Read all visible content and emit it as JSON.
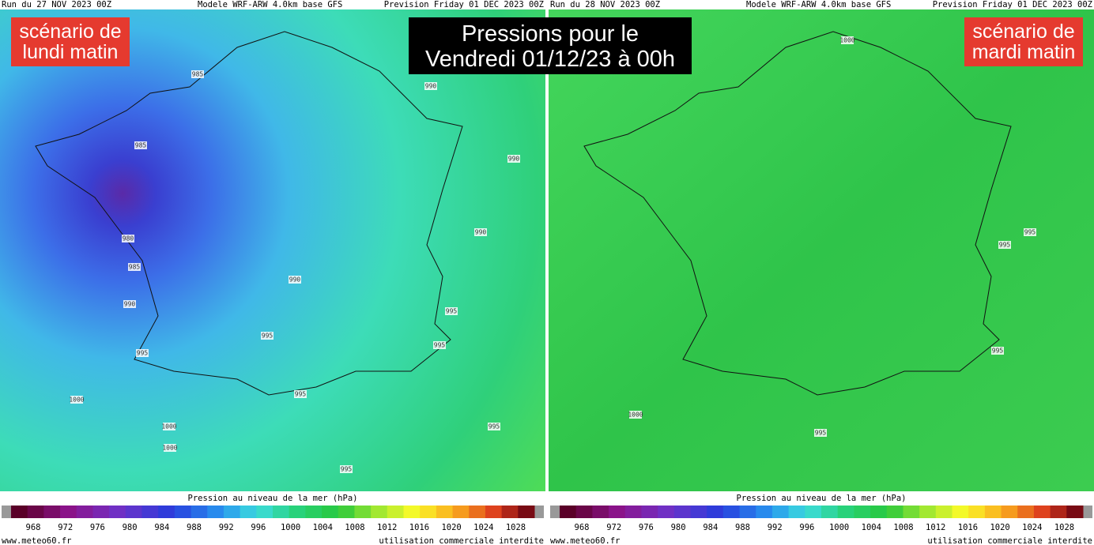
{
  "title_lines": [
    "Pressions pour le",
    "Vendredi 01/12/23 à 00h"
  ],
  "panels": [
    {
      "run": "Run du 27 NOV 2023 00Z",
      "model": "Modele WRF-ARW 4.0km base GFS",
      "forecast": "Prevision Friday 01 DEC 2023 00Z",
      "scenario": [
        "scénario de",
        "lundi matin"
      ],
      "isobar_labels": [
        "985",
        "985",
        "990",
        "990",
        "990",
        "980",
        "985",
        "990",
        "990",
        "995",
        "995",
        "995",
        "995",
        "1000",
        "995",
        "1000",
        "1000",
        "995",
        "995"
      ],
      "legend_title": "Pression au niveau de la mer (hPa)",
      "scale_labels": [
        "968",
        "972",
        "976",
        "980",
        "984",
        "988",
        "992",
        "996",
        "1000",
        "1004",
        "1008",
        "1012",
        "1016",
        "1020",
        "1024",
        "1028"
      ],
      "site": "www.meteo60.fr",
      "notice": "utilisation commerciale interdite"
    },
    {
      "run": "Run du 28 NOV 2023 00Z",
      "model": "Modele WRF-ARW 4.0km base GFS",
      "forecast": "Prevision Friday 01 DEC 2023 00Z",
      "scenario": [
        "scénario de",
        "mardi matin"
      ],
      "isobar_labels": [
        "1000",
        "995",
        "995",
        "995",
        "1000",
        "995"
      ],
      "legend_title": "Pression au niveau de la mer (hPa)",
      "scale_labels": [
        "968",
        "972",
        "976",
        "980",
        "984",
        "988",
        "992",
        "996",
        "1000",
        "1004",
        "1008",
        "1012",
        "1016",
        "1020",
        "1024",
        "1028"
      ],
      "site": "www.meteo60.fr",
      "notice": "utilisation commerciale interdite"
    }
  ]
}
